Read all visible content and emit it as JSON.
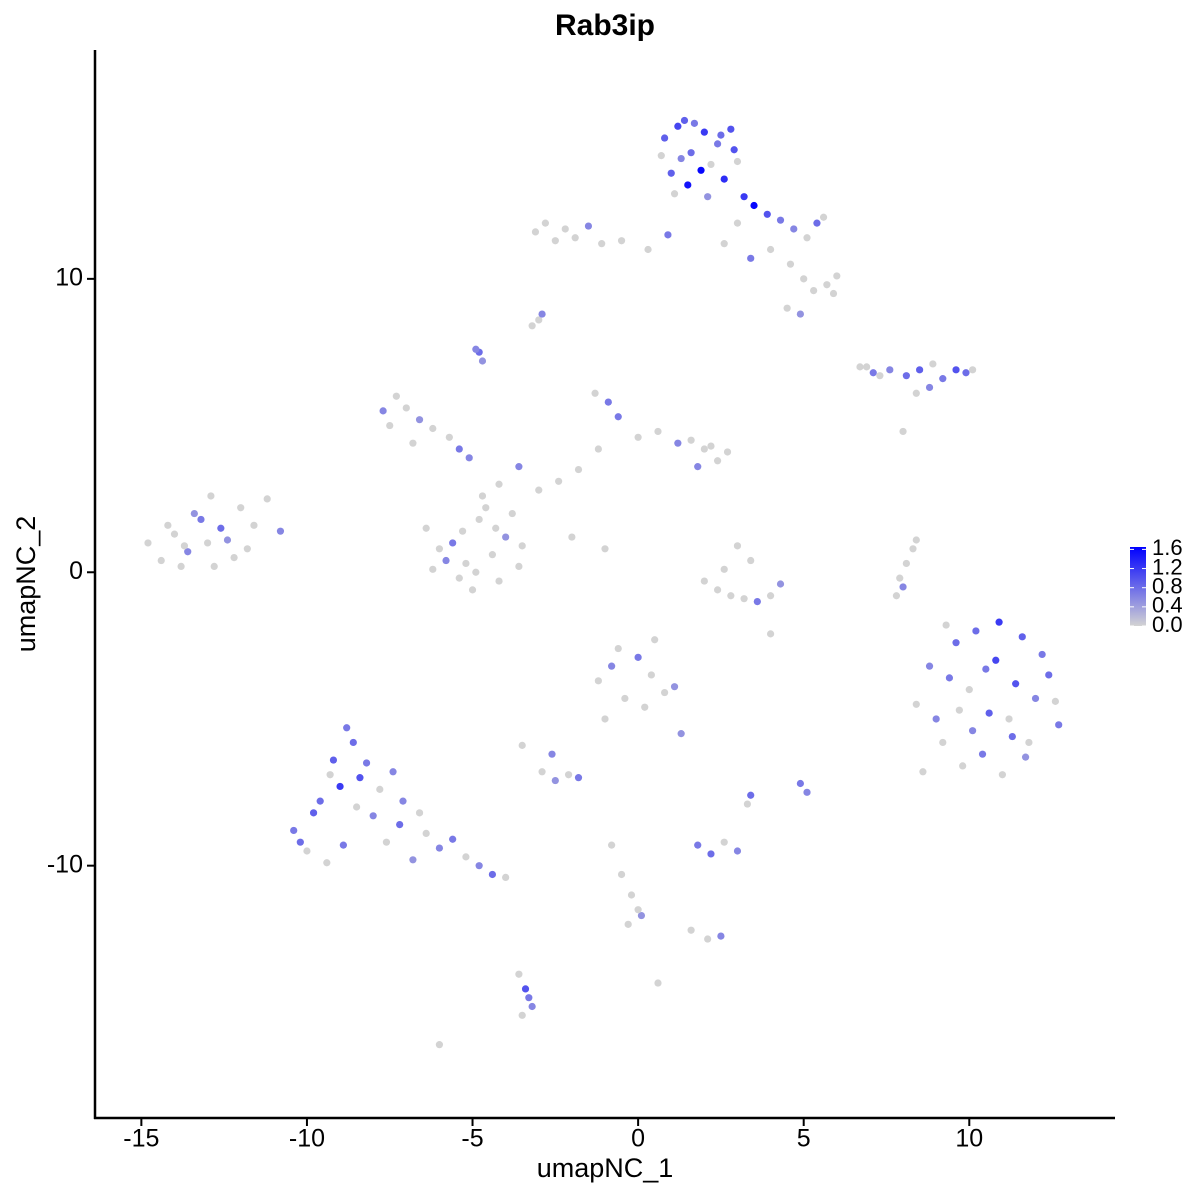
{
  "chart_data": {
    "type": "scatter",
    "title": "Rab3ip",
    "x_label": "umapNC_1",
    "y_label": "umapNC_2",
    "xlim": [
      -16.4,
      14.4
    ],
    "ylim": [
      -18.6,
      17.8
    ],
    "xticks": [
      -15,
      -10,
      -5,
      0,
      5,
      10
    ],
    "yticks": [
      -10,
      0,
      10
    ],
    "colorbar": {
      "low": "#d3d3d3",
      "high": "#0000ff",
      "lim": [
        0,
        1.65
      ],
      "ticks": [
        {
          "value": 1.6,
          "label": "1.6"
        },
        {
          "value": 1.2,
          "label": "1.2"
        },
        {
          "value": 0.8,
          "label": "0.8"
        },
        {
          "value": 0.4,
          "label": "0.4"
        },
        {
          "value": 0,
          "label": "0.0"
        }
      ]
    },
    "x": [
      0.8,
      1.2,
      1.6,
      2.0,
      2.4,
      2.8,
      3.0,
      1.0,
      1.5,
      2.2,
      2.6,
      1.3,
      1.9,
      0.7,
      2.5,
      1.7,
      2.9,
      1.1,
      2.1,
      1.4,
      3.2,
      3.5,
      3.9,
      4.3,
      4.7,
      5.1,
      5.4,
      5.6,
      4.0,
      4.6,
      5.0,
      5.3,
      5.7,
      5.9,
      4.5,
      4.9,
      3.4,
      3.0,
      2.6,
      6.0,
      -3.1,
      -2.8,
      -2.5,
      -2.2,
      -1.9,
      -1.5,
      -1.1,
      -0.5,
      0.3,
      0.9,
      -4.8,
      -4.7,
      -4.9,
      -3.0,
      -2.9,
      -3.2,
      6.7,
      7.1,
      7.6,
      8.1,
      8.5,
      8.9,
      9.2,
      9.6,
      9.9,
      10.1,
      7.3,
      8.4,
      8.8,
      6.9,
      -7.7,
      -7.3,
      -7.0,
      -6.6,
      -6.2,
      -5.7,
      -5.4,
      -5.1,
      -6.8,
      -7.5,
      -6.4,
      -6.0,
      -5.6,
      -5.2,
      -4.8,
      -4.4,
      -4.0,
      -3.6,
      -5.0,
      -4.6,
      -4.2,
      -3.8,
      -5.4,
      -5.8,
      -4.9,
      -4.3,
      -3.5,
      -6.2,
      -4.7,
      -5.3,
      -4.2,
      -3.6,
      -3.0,
      -2.4,
      -1.8,
      -1.2,
      -0.6,
      0.0,
      0.6,
      1.2,
      1.6,
      2.0,
      2.4,
      2.7,
      1.8,
      2.2,
      -1.3,
      -0.9,
      -2.0,
      -1.0,
      -14.8,
      -14.4,
      -14.0,
      -13.6,
      -13.2,
      -12.8,
      -12.4,
      -12.0,
      -11.6,
      -11.2,
      -10.8,
      -14.2,
      -13.8,
      -13.4,
      -13.0,
      -12.6,
      -12.2,
      -13.7,
      -12.9,
      -11.8,
      2.0,
      2.4,
      2.8,
      3.2,
      3.6,
      4.0,
      4.3,
      3.0,
      3.4,
      2.6,
      7.9,
      8.1,
      8.3,
      8.4,
      8.0,
      7.8,
      4.0,
      8.0,
      0.5,
      -1.0,
      8.4,
      8.8,
      9.2,
      9.6,
      10.0,
      10.4,
      10.8,
      11.2,
      11.6,
      12.0,
      12.4,
      12.7,
      8.6,
      9.0,
      9.4,
      9.8,
      10.2,
      10.6,
      11.0,
      11.4,
      11.8,
      12.2,
      12.6,
      9.3,
      10.1,
      10.9,
      11.7,
      9.7,
      10.5,
      11.3,
      -1.2,
      -0.8,
      -0.4,
      0.0,
      0.4,
      0.8,
      1.1,
      -0.6,
      0.2,
      1.3,
      -10.4,
      -10.0,
      -9.6,
      -9.2,
      -8.8,
      -8.4,
      -8.0,
      -7.6,
      -7.2,
      -6.8,
      -6.4,
      -6.0,
      -5.6,
      -5.2,
      -4.8,
      -4.4,
      -4.0,
      -9.8,
      -9.4,
      -9.0,
      -8.6,
      -8.2,
      -7.8,
      -7.4,
      -8.9,
      -8.5,
      -9.3,
      -7.1,
      -6.6,
      -10.2,
      -2.9,
      -2.5,
      -2.1,
      -1.8,
      -3.5,
      -2.6,
      1.8,
      2.2,
      2.6,
      3.0,
      4.9,
      5.1,
      3.4,
      3.3,
      -0.8,
      -0.5,
      -0.2,
      0.1,
      -0.3,
      0.0,
      1.6,
      2.1,
      2.5,
      -3.6,
      -3.4,
      -3.2,
      -3.5,
      -3.3,
      -6.0,
      0.6
    ],
    "y": [
      14.8,
      15.2,
      14.3,
      15.0,
      14.6,
      15.1,
      14.0,
      13.6,
      13.2,
      13.9,
      13.4,
      14.1,
      13.7,
      14.2,
      14.9,
      15.3,
      14.4,
      12.9,
      12.8,
      15.4,
      12.8,
      12.5,
      12.2,
      12.0,
      11.7,
      11.4,
      11.9,
      12.1,
      11.0,
      10.5,
      10.0,
      9.6,
      9.8,
      9.5,
      9.0,
      8.8,
      10.7,
      11.9,
      11.2,
      10.1,
      11.6,
      11.9,
      11.3,
      11.7,
      11.4,
      11.8,
      11.2,
      11.3,
      11.0,
      11.5,
      7.5,
      7.2,
      7.6,
      8.6,
      8.8,
      8.4,
      7.0,
      6.8,
      6.9,
      6.7,
      6.9,
      7.1,
      6.6,
      6.9,
      6.8,
      6.9,
      6.7,
      6.1,
      6.3,
      7.0,
      5.5,
      6.0,
      5.6,
      5.2,
      4.9,
      4.6,
      4.2,
      3.9,
      4.4,
      5.0,
      1.5,
      0.8,
      1.0,
      0.3,
      1.8,
      0.6,
      1.2,
      0.2,
      -0.6,
      2.2,
      -0.3,
      2.0,
      -0.2,
      0.4,
      0.0,
      1.5,
      0.9,
      0.1,
      2.6,
      1.4,
      3.0,
      3.6,
      2.8,
      3.1,
      3.5,
      4.2,
      5.3,
      4.6,
      4.8,
      4.4,
      4.5,
      4.2,
      3.8,
      4.1,
      3.6,
      4.3,
      6.1,
      5.8,
      1.2,
      0.8,
      1.0,
      0.4,
      1.3,
      0.7,
      1.8,
      0.2,
      1.1,
      2.2,
      1.6,
      2.5,
      1.4,
      1.6,
      0.2,
      2.0,
      1.0,
      1.5,
      0.5,
      0.9,
      2.6,
      0.8,
      -0.3,
      -0.6,
      -0.8,
      -0.9,
      -1.0,
      -0.8,
      -0.4,
      0.9,
      0.4,
      0.1,
      -0.2,
      0.3,
      0.8,
      1.1,
      -0.5,
      -0.8,
      -2.1,
      4.8,
      -2.3,
      -5.0,
      -4.5,
      -3.2,
      -5.8,
      -2.4,
      -4.0,
      -6.2,
      -3.0,
      -5.0,
      -2.2,
      -4.3,
      -3.5,
      -5.2,
      -6.8,
      -5.0,
      -3.6,
      -6.6,
      -2.0,
      -4.8,
      -6.9,
      -3.8,
      -5.8,
      -2.8,
      -4.4,
      -1.8,
      -5.4,
      -1.7,
      -6.3,
      -4.7,
      -3.3,
      -5.6,
      -3.7,
      -3.2,
      -4.3,
      -2.9,
      -3.5,
      -4.1,
      -3.9,
      -2.6,
      -4.6,
      -5.5,
      -8.8,
      -9.5,
      -7.8,
      -6.4,
      -5.3,
      -7.0,
      -8.3,
      -9.2,
      -8.6,
      -9.8,
      -8.9,
      -9.4,
      -9.1,
      -9.7,
      -10.0,
      -10.3,
      -10.4,
      -8.2,
      -9.9,
      -7.3,
      -5.8,
      -6.5,
      -7.4,
      -6.8,
      -9.3,
      -8.0,
      -6.9,
      -7.8,
      -8.2,
      -9.2,
      -6.8,
      -7.1,
      -6.9,
      -7.0,
      -5.9,
      -6.2,
      -9.3,
      -9.6,
      -9.2,
      -9.5,
      -7.2,
      -7.5,
      -7.6,
      -7.9,
      -9.3,
      -10.3,
      -11.0,
      -11.7,
      -12.0,
      -11.5,
      -12.2,
      -12.5,
      -12.4,
      -13.7,
      -14.2,
      -14.8,
      -15.1,
      -14.5,
      -16.1,
      -14.0
    ],
    "values": [
      0.9,
      1.1,
      0.8,
      1.2,
      0.7,
      1.0,
      0,
      0.9,
      1.5,
      0,
      1.3,
      0.6,
      1.6,
      0,
      0.8,
      0.7,
      1.0,
      0,
      0.5,
      0.9,
      1.2,
      1.6,
      1.0,
      0.7,
      0.6,
      0,
      0.8,
      0,
      0,
      0,
      0,
      0,
      0,
      0,
      0,
      0.5,
      0.7,
      0,
      0,
      0,
      0,
      0,
      0,
      0,
      0,
      0.6,
      0,
      0,
      0,
      0.7,
      0.8,
      0.5,
      0.6,
      0,
      0.6,
      0,
      0,
      0.7,
      0.6,
      0.8,
      0.9,
      0,
      0.7,
      1.0,
      0.8,
      0,
      0,
      0,
      0.6,
      0,
      0.6,
      0,
      0,
      0.5,
      0,
      0,
      0.7,
      0.6,
      0,
      0,
      0,
      0,
      0.7,
      0,
      0,
      0,
      0.5,
      0,
      0,
      0,
      0,
      0,
      0,
      0.6,
      0,
      0,
      0,
      0,
      0,
      0,
      0,
      0.6,
      0,
      0,
      0,
      0,
      0.7,
      0,
      0,
      0.6,
      0,
      0,
      0,
      0,
      0.6,
      0,
      0,
      0.7,
      0,
      0,
      0,
      0,
      0,
      0.6,
      0.7,
      0,
      0.5,
      0,
      0,
      0,
      0.6,
      0,
      0,
      0.5,
      0,
      0.8,
      0,
      0,
      0,
      0,
      0,
      0,
      0,
      0,
      0.7,
      0,
      0.5,
      0,
      0,
      0,
      0,
      0,
      0,
      0,
      0.6,
      0,
      0,
      0,
      0,
      0,
      0,
      0.6,
      0,
      0.8,
      0,
      0.7,
      1.1,
      0,
      0.9,
      0.6,
      0.8,
      0.7,
      0,
      0.6,
      0.7,
      0,
      0.8,
      0.9,
      0,
      1.0,
      0,
      0.7,
      0,
      0,
      0.6,
      1.2,
      0.5,
      0,
      0.7,
      0.8,
      0,
      0.6,
      0,
      0.7,
      0,
      0,
      0.5,
      0,
      0,
      0.5,
      0.7,
      0,
      0.8,
      0.9,
      0.7,
      1.0,
      0.6,
      0,
      0.8,
      0.5,
      0,
      0.6,
      0.7,
      0,
      0.6,
      0.8,
      0,
      0.9,
      0,
      1.2,
      0.8,
      0.7,
      0,
      0.6,
      0.7,
      0,
      0,
      0.6,
      0,
      0.8,
      0,
      0.5,
      0,
      0.7,
      0,
      0.6,
      0.7,
      0.8,
      0,
      0.6,
      0.7,
      0.6,
      0.8,
      0,
      0,
      0,
      0,
      0.5,
      0,
      0,
      0,
      0,
      0.6,
      0,
      1.0,
      0.6,
      0,
      0.7,
      0,
      0
    ]
  }
}
